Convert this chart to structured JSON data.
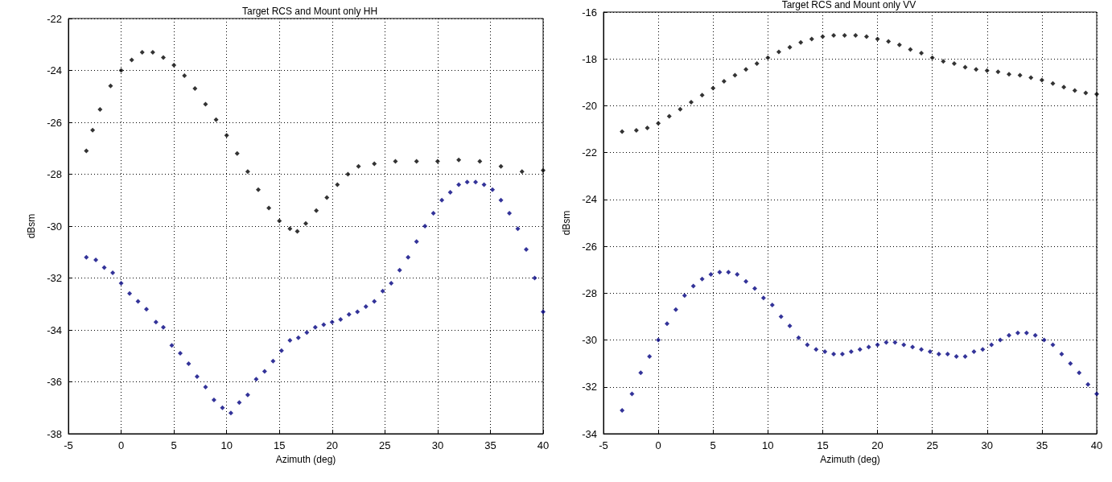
{
  "chart_data": [
    {
      "type": "scatter",
      "title": "Target RCS and Mount only HH",
      "xlabel": "Azimuth (deg)",
      "ylabel": "dBsm",
      "xlim": [
        -5,
        40
      ],
      "xticks": [
        -5,
        0,
        5,
        10,
        15,
        20,
        25,
        30,
        35,
        40
      ],
      "ylim": [
        -38,
        -22
      ],
      "yticks": [
        -38,
        -36,
        -34,
        -32,
        -30,
        -28,
        -26,
        -24,
        -22
      ],
      "grid": true,
      "marker": "diamond",
      "series": [
        {
          "color": "#000000",
          "x": [
            -3.3,
            -2.7,
            -2,
            -1,
            0,
            1,
            2,
            3,
            4,
            5,
            6,
            7,
            8,
            9,
            10,
            11,
            12,
            13,
            14,
            15,
            16,
            16.7,
            17.5,
            18.5,
            19.5,
            20.5,
            21.5,
            22.5,
            24,
            26,
            28,
            30,
            32,
            34,
            36,
            38,
            40
          ],
          "values": [
            -27.1,
            -26.3,
            -25.5,
            -24.6,
            -24.0,
            -23.6,
            -23.3,
            -23.3,
            -23.5,
            -23.8,
            -24.2,
            -24.7,
            -25.3,
            -25.9,
            -26.5,
            -27.2,
            -27.9,
            -28.6,
            -29.3,
            -29.8,
            -30.1,
            -30.2,
            -29.9,
            -29.4,
            -28.9,
            -28.4,
            -28.0,
            -27.7,
            -27.6,
            -27.5,
            -27.5,
            -27.5,
            -27.45,
            -27.5,
            -27.7,
            -27.9,
            -27.85
          ]
        },
        {
          "color": "#000080",
          "x": [
            -3.3,
            -2.4,
            -1.6,
            -0.8,
            0,
            0.8,
            1.6,
            2.4,
            3.3,
            4,
            4.8,
            5.6,
            6.4,
            7.2,
            8,
            8.8,
            9.6,
            10.4,
            11.2,
            12,
            12.8,
            13.6,
            14.4,
            15.2,
            16,
            16.8,
            17.6,
            18.4,
            19.2,
            20,
            20.8,
            21.6,
            22.4,
            23.2,
            24,
            24.8,
            25.6,
            26.4,
            27.2,
            28,
            28.8,
            29.6,
            30.4,
            31.2,
            32,
            32.8,
            33.6,
            34.4,
            35.2,
            36,
            36.8,
            37.6,
            38.4,
            39.2,
            40
          ],
          "values": [
            -31.2,
            -31.3,
            -31.6,
            -31.8,
            -32.2,
            -32.6,
            -32.9,
            -33.2,
            -33.7,
            -33.9,
            -34.6,
            -34.9,
            -35.3,
            -35.8,
            -36.2,
            -36.7,
            -37.0,
            -37.2,
            -36.8,
            -36.5,
            -35.9,
            -35.6,
            -35.2,
            -34.8,
            -34.4,
            -34.3,
            -34.1,
            -33.9,
            -33.8,
            -33.7,
            -33.6,
            -33.4,
            -33.3,
            -33.1,
            -32.9,
            -32.5,
            -32.2,
            -31.7,
            -31.2,
            -30.6,
            -30.0,
            -29.5,
            -29.0,
            -28.7,
            -28.4,
            -28.3,
            -28.3,
            -28.4,
            -28.6,
            -29.0,
            -29.5,
            -30.1,
            -30.9,
            -32.0,
            -33.3
          ]
        }
      ]
    },
    {
      "type": "scatter",
      "title": "Target RCS and Mount only VV",
      "xlabel": "Azimuth (deg)",
      "ylabel": "dBsm",
      "xlim": [
        -5,
        40
      ],
      "xticks": [
        -5,
        0,
        5,
        10,
        15,
        20,
        25,
        30,
        35,
        40
      ],
      "ylim": [
        -34,
        -16
      ],
      "yticks": [
        -34,
        -32,
        -30,
        -28,
        -26,
        -24,
        -22,
        -20,
        -18,
        -16
      ],
      "grid": true,
      "marker": "diamond",
      "series": [
        {
          "color": "#000000",
          "x": [
            -3.3,
            -2,
            -1,
            0,
            1,
            2,
            3,
            4,
            5,
            6,
            7,
            8,
            9,
            10,
            11,
            12,
            13,
            14,
            15,
            16,
            17,
            18,
            19,
            20,
            21,
            22,
            23,
            24,
            25,
            26,
            27,
            28,
            29,
            30,
            31,
            32,
            33,
            34,
            35,
            36,
            37,
            38,
            39,
            40
          ],
          "values": [
            -21.1,
            -21.05,
            -20.95,
            -20.75,
            -20.45,
            -20.15,
            -19.85,
            -19.55,
            -19.25,
            -18.95,
            -18.7,
            -18.45,
            -18.2,
            -17.95,
            -17.7,
            -17.5,
            -17.3,
            -17.15,
            -17.05,
            -17.0,
            -17.0,
            -17.0,
            -17.05,
            -17.15,
            -17.25,
            -17.4,
            -17.6,
            -17.75,
            -17.95,
            -18.1,
            -18.2,
            -18.35,
            -18.45,
            -18.5,
            -18.55,
            -18.65,
            -18.7,
            -18.8,
            -18.9,
            -19.05,
            -19.2,
            -19.35,
            -19.45,
            -19.5
          ]
        },
        {
          "color": "#000080",
          "x": [
            -3.3,
            -2.4,
            -1.6,
            -0.8,
            0,
            0.8,
            1.6,
            2.4,
            3.2,
            4,
            4.8,
            5.6,
            6.4,
            7.2,
            8,
            8.8,
            9.6,
            10.4,
            11.2,
            12,
            12.8,
            13.6,
            14.4,
            15.2,
            16,
            16.8,
            17.6,
            18.4,
            19.2,
            20,
            20.8,
            21.6,
            22.4,
            23.2,
            24,
            24.8,
            25.6,
            26.4,
            27.2,
            28,
            28.8,
            29.6,
            30.4,
            31.2,
            32,
            32.8,
            33.6,
            34.4,
            35.2,
            36,
            36.8,
            37.6,
            38.4,
            39.2,
            40
          ],
          "values": [
            -33.0,
            -32.3,
            -31.4,
            -30.7,
            -30.0,
            -29.3,
            -28.7,
            -28.1,
            -27.7,
            -27.4,
            -27.2,
            -27.1,
            -27.1,
            -27.2,
            -27.5,
            -27.8,
            -28.2,
            -28.5,
            -29.0,
            -29.4,
            -29.9,
            -30.2,
            -30.4,
            -30.5,
            -30.6,
            -30.6,
            -30.5,
            -30.4,
            -30.3,
            -30.2,
            -30.1,
            -30.1,
            -30.2,
            -30.3,
            -30.4,
            -30.5,
            -30.6,
            -30.6,
            -30.7,
            -30.7,
            -30.5,
            -30.4,
            -30.2,
            -30.0,
            -29.8,
            -29.7,
            -29.7,
            -29.8,
            -30.0,
            -30.2,
            -30.6,
            -31.0,
            -31.4,
            -31.9,
            -32.3
          ]
        }
      ]
    }
  ]
}
